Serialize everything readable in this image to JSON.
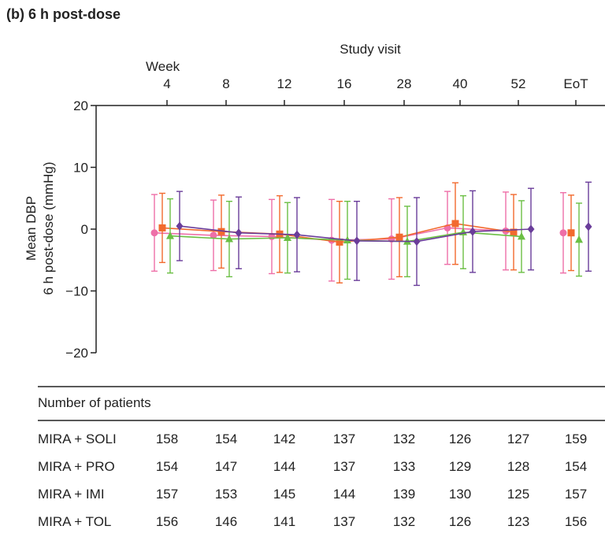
{
  "panel_title": "(b)  6 h post-dose",
  "chart_data": {
    "type": "line",
    "x_axis_title": "Study visit",
    "x_prefix_label": "Week",
    "categories": [
      "4",
      "8",
      "12",
      "16",
      "28",
      "40",
      "52",
      "EoT"
    ],
    "ylabel_line1": "Mean DBP",
    "ylabel_line2": "6 h post-dose (mmHg)",
    "ylim": [
      -20,
      20
    ],
    "yticks": [
      "20",
      "10",
      "0",
      "−10",
      "−20"
    ],
    "grid": false,
    "series": [
      {
        "name": "MIRA + SOLI",
        "color": "#ee6fa8",
        "marker": "circle",
        "values": [
          -0.6,
          -1.0,
          -1.2,
          -1.8,
          -1.6,
          0.2,
          -0.3,
          -0.6
        ],
        "sd": [
          6.2,
          5.7,
          6.0,
          6.6,
          6.5,
          5.9,
          6.3,
          6.5
        ]
      },
      {
        "name": "MIRA + PRO",
        "color": "#f26a2e",
        "marker": "square",
        "values": [
          0.2,
          -0.4,
          -0.8,
          -2.1,
          -1.3,
          0.9,
          -0.5,
          -0.6
        ],
        "sd": [
          5.6,
          5.9,
          6.2,
          6.6,
          6.4,
          6.6,
          6.1,
          6.1
        ]
      },
      {
        "name": "MIRA + IMI",
        "color": "#6bbf44",
        "marker": "triangle",
        "values": [
          -1.1,
          -1.6,
          -1.4,
          -1.8,
          -2.0,
          -0.5,
          -1.2,
          -1.7
        ],
        "sd": [
          6.0,
          6.1,
          5.7,
          6.3,
          5.7,
          5.9,
          5.8,
          5.9
        ]
      },
      {
        "name": "MIRA + TOL",
        "color": "#6a3d9a",
        "marker": "diamond",
        "values": [
          0.5,
          -0.6,
          -0.9,
          -1.9,
          -2.0,
          -0.4,
          0.0,
          0.4
        ],
        "sd": [
          5.6,
          5.8,
          6.0,
          6.4,
          7.1,
          6.6,
          6.6,
          7.2
        ]
      }
    ]
  },
  "table": {
    "title": "Number of patients",
    "rows": [
      {
        "label": "MIRA + SOLI",
        "values": [
          "158",
          "154",
          "142",
          "137",
          "132",
          "126",
          "127",
          "159"
        ]
      },
      {
        "label": "MIRA + PRO",
        "values": [
          "154",
          "147",
          "144",
          "137",
          "133",
          "129",
          "128",
          "154"
        ]
      },
      {
        "label": "MIRA + IMI",
        "values": [
          "157",
          "153",
          "145",
          "144",
          "139",
          "130",
          "125",
          "157"
        ]
      },
      {
        "label": "MIRA + TOL",
        "values": [
          "156",
          "146",
          "141",
          "137",
          "132",
          "126",
          "123",
          "156"
        ]
      }
    ]
  }
}
